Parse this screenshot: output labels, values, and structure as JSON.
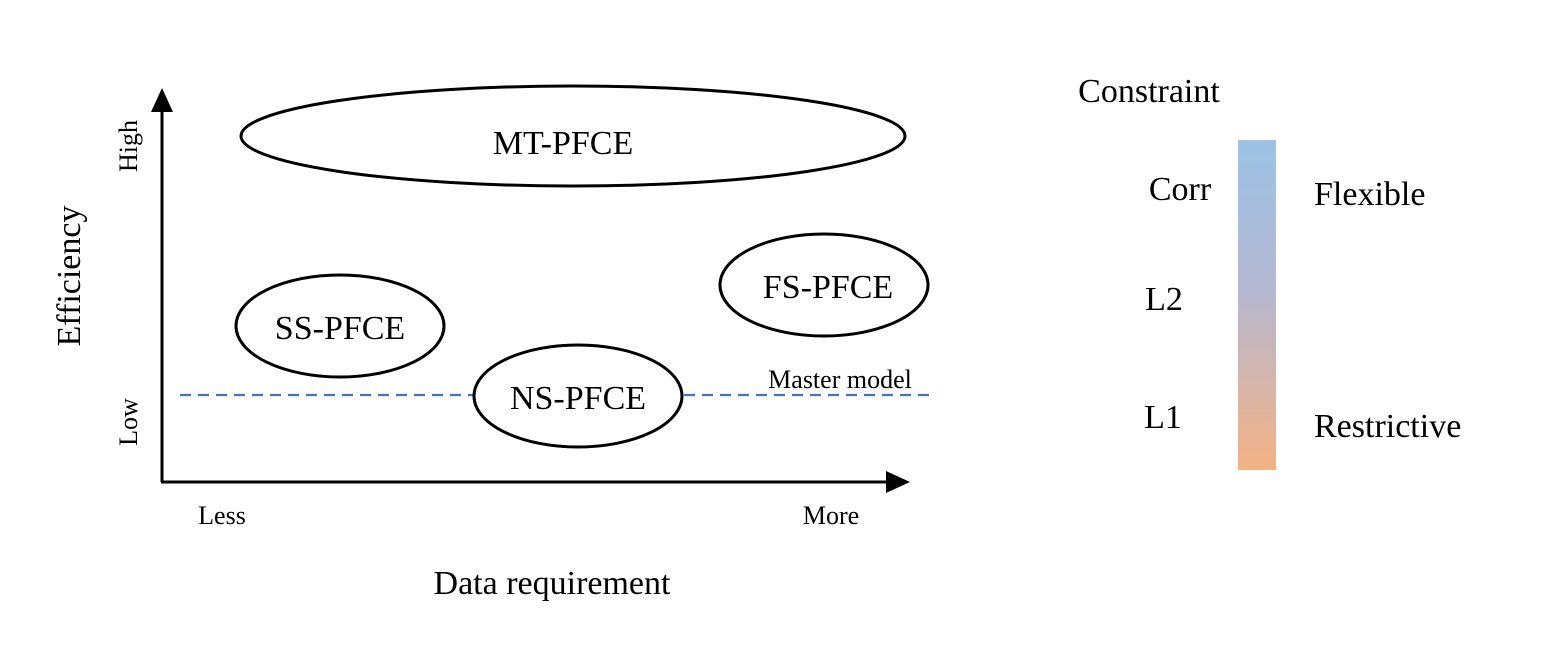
{
  "axes": {
    "y_label": "Efficiency",
    "y_high": "High",
    "y_low": "Low",
    "x_label": "Data requirement",
    "x_less": "Less",
    "x_more": "More"
  },
  "baseline": {
    "label": "Master model",
    "color": "#4472c4"
  },
  "methods": {
    "mt": "MT-PFCE",
    "ss": "SS-PFCE",
    "fs": "FS-PFCE",
    "ns": "NS-PFCE"
  },
  "constraint": {
    "title": "Constraint",
    "levels": [
      "Corr",
      "L2",
      "L1"
    ],
    "flexible": "Flexible",
    "restrictive": "Restrictive",
    "gradient_top_color": "#9dc3e6",
    "gradient_bottom_color": "#f4b183"
  }
}
